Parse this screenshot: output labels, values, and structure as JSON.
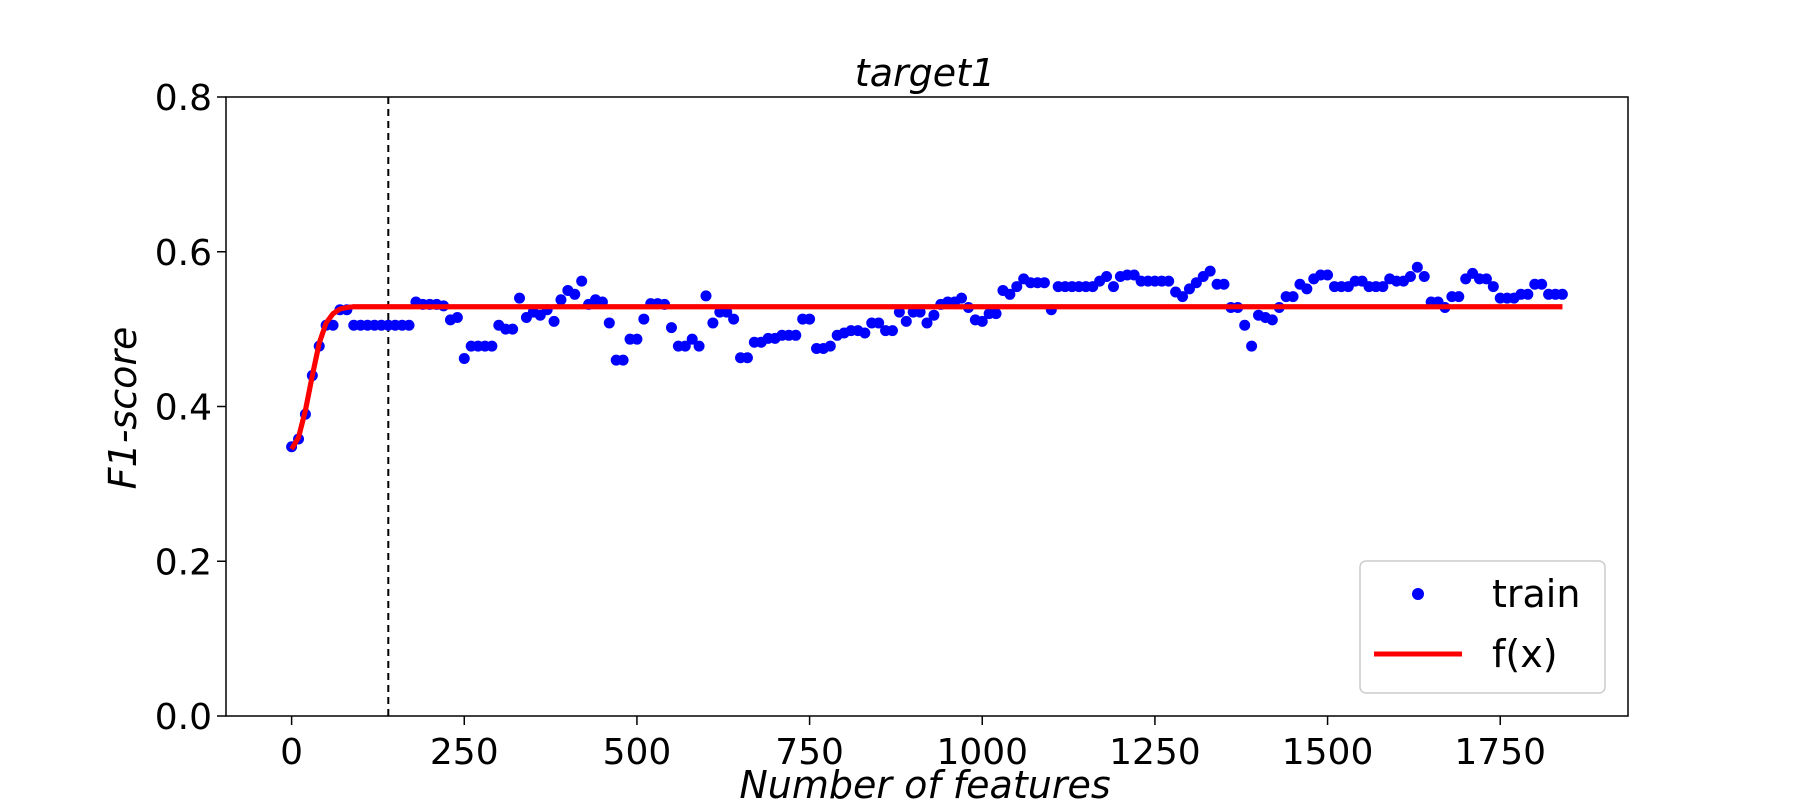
{
  "chart_data": {
    "type": "scatter",
    "title": "target1",
    "xlabel": "Number of features",
    "ylabel": "F1-score",
    "xlim": [
      -95,
      1935
    ],
    "ylim": [
      0,
      0.8
    ],
    "x_ticks": [
      0,
      250,
      500,
      750,
      1000,
      1250,
      1500,
      1750
    ],
    "y_ticks": [
      0.0,
      0.2,
      0.4,
      0.6,
      0.8
    ],
    "x_tick_labels": [
      "0",
      "250",
      "500",
      "750",
      "1000",
      "1250",
      "1500",
      "1750"
    ],
    "y_tick_labels": [
      "0.0",
      "0.2",
      "0.4",
      "0.6",
      "0.8"
    ],
    "grid": false,
    "legend": {
      "placement": "lower-right",
      "entries": [
        "train",
        "f(x)"
      ]
    },
    "vline": {
      "x": 140,
      "style": "dashed",
      "color": "#000000"
    },
    "series": [
      {
        "name": "train",
        "kind": "scatter",
        "color": "#0000ff",
        "x": [
          0,
          10,
          20,
          30,
          40,
          50,
          60,
          70,
          80,
          90,
          100,
          110,
          120,
          130,
          140,
          150,
          160,
          170,
          180,
          190,
          200,
          210,
          220,
          230,
          240,
          250,
          260,
          270,
          280,
          290,
          300,
          310,
          320,
          330,
          340,
          350,
          360,
          370,
          380,
          390,
          400,
          410,
          420,
          430,
          440,
          450,
          460,
          470,
          480,
          490,
          500,
          510,
          520,
          530,
          540,
          550,
          560,
          570,
          580,
          590,
          600,
          610,
          620,
          630,
          640,
          650,
          660,
          670,
          680,
          690,
          700,
          710,
          720,
          730,
          740,
          750,
          760,
          770,
          780,
          790,
          800,
          810,
          820,
          830,
          840,
          850,
          860,
          870,
          880,
          890,
          900,
          910,
          920,
          930,
          940,
          950,
          960,
          970,
          980,
          990,
          1000,
          1010,
          1020,
          1030,
          1040,
          1050,
          1060,
          1070,
          1080,
          1090,
          1100,
          1110,
          1120,
          1130,
          1140,
          1150,
          1160,
          1170,
          1180,
          1190,
          1200,
          1210,
          1220,
          1230,
          1240,
          1250,
          1260,
          1270,
          1280,
          1290,
          1300,
          1310,
          1320,
          1330,
          1340,
          1350,
          1360,
          1370,
          1380,
          1390,
          1400,
          1410,
          1420,
          1430,
          1440,
          1450,
          1460,
          1470,
          1480,
          1490,
          1500,
          1510,
          1520,
          1530,
          1540,
          1550,
          1560,
          1570,
          1580,
          1590,
          1600,
          1610,
          1620,
          1630,
          1640,
          1650,
          1660,
          1670,
          1680,
          1690,
          1700,
          1710,
          1720,
          1730,
          1740,
          1750,
          1760,
          1770,
          1780,
          1790,
          1800,
          1810,
          1820,
          1830,
          1840
        ],
        "y": [
          0.348,
          0.358,
          0.39,
          0.44,
          0.478,
          0.505,
          0.505,
          0.525,
          0.525,
          0.505,
          0.505,
          0.505,
          0.505,
          0.505,
          0.505,
          0.505,
          0.505,
          0.505,
          0.535,
          0.532,
          0.532,
          0.532,
          0.53,
          0.512,
          0.515,
          0.462,
          0.478,
          0.478,
          0.478,
          0.478,
          0.505,
          0.5,
          0.5,
          0.54,
          0.515,
          0.522,
          0.518,
          0.525,
          0.51,
          0.538,
          0.55,
          0.545,
          0.562,
          0.532,
          0.538,
          0.535,
          0.508,
          0.46,
          0.46,
          0.487,
          0.487,
          0.513,
          0.533,
          0.533,
          0.532,
          0.502,
          0.478,
          0.478,
          0.487,
          0.478,
          0.543,
          0.508,
          0.522,
          0.522,
          0.513,
          0.463,
          0.463,
          0.483,
          0.483,
          0.488,
          0.488,
          0.492,
          0.492,
          0.492,
          0.513,
          0.513,
          0.475,
          0.475,
          0.478,
          0.492,
          0.495,
          0.498,
          0.498,
          0.495,
          0.508,
          0.508,
          0.498,
          0.498,
          0.522,
          0.51,
          0.522,
          0.522,
          0.508,
          0.518,
          0.532,
          0.535,
          0.535,
          0.54,
          0.528,
          0.512,
          0.51,
          0.52,
          0.52,
          0.55,
          0.545,
          0.555,
          0.565,
          0.56,
          0.56,
          0.56,
          0.525,
          0.555,
          0.555,
          0.555,
          0.555,
          0.555,
          0.555,
          0.562,
          0.568,
          0.555,
          0.568,
          0.57,
          0.57,
          0.562,
          0.562,
          0.562,
          0.562,
          0.562,
          0.548,
          0.542,
          0.552,
          0.56,
          0.568,
          0.575,
          0.558,
          0.558,
          0.528,
          0.528,
          0.505,
          0.478,
          0.518,
          0.515,
          0.512,
          0.528,
          0.542,
          0.542,
          0.558,
          0.552,
          0.565,
          0.57,
          0.57,
          0.555,
          0.555,
          0.555,
          0.562,
          0.562,
          0.555,
          0.555,
          0.555,
          0.565,
          0.562,
          0.562,
          0.568,
          0.58,
          0.568,
          0.535,
          0.535,
          0.528,
          0.542,
          0.542,
          0.565,
          0.572,
          0.565,
          0.565,
          0.555,
          0.54,
          0.54,
          0.54,
          0.545,
          0.545,
          0.558,
          0.558,
          0.545,
          0.545,
          0.545
        ]
      },
      {
        "name": "f(x)",
        "kind": "line",
        "color": "#ff0000",
        "x": [
          0,
          10,
          20,
          30,
          40,
          50,
          60,
          70,
          80,
          90,
          100,
          120,
          150,
          200,
          300,
          500,
          1000,
          1500,
          1840
        ],
        "y": [
          0.345,
          0.36,
          0.395,
          0.44,
          0.482,
          0.508,
          0.52,
          0.526,
          0.528,
          0.529,
          0.529,
          0.529,
          0.529,
          0.529,
          0.529,
          0.529,
          0.529,
          0.529,
          0.529
        ]
      }
    ]
  }
}
